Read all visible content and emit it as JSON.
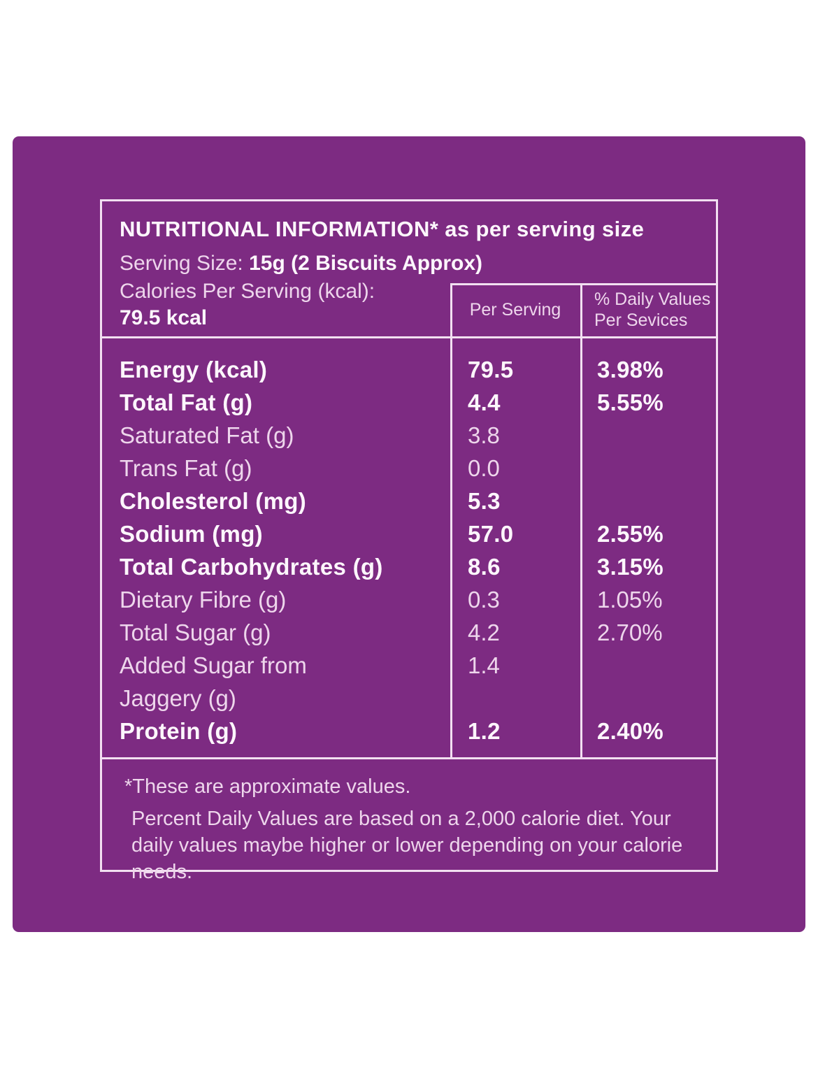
{
  "colors": {
    "page_background": "#ffffff",
    "panel_purple": "#7d2b82",
    "divider_line": "#f2e0f1",
    "text_regular": "#eed6ec",
    "text_bold": "#fdf6fc"
  },
  "header": {
    "title": "NUTRITIONAL INFORMATION* as per serving size",
    "serving_size_label": "Serving Size: ",
    "serving_size_value": "15g (2 Biscuits Approx)",
    "calories_label": "Calories Per Serving (kcal):",
    "calories_value": "79.5 kcal"
  },
  "columns": {
    "per_serving": "Per Serving",
    "daily_values_line1": "% Daily Values",
    "daily_values_line2": "Per Sevices"
  },
  "rows": [
    {
      "label": "Energy (kcal)",
      "per_serving": "79.5",
      "daily_pct": "3.98%",
      "bold": true
    },
    {
      "label": "Total Fat (g)",
      "per_serving": "4.4",
      "daily_pct": "5.55%",
      "bold": true
    },
    {
      "label": "Saturated Fat (g)",
      "per_serving": "3.8",
      "daily_pct": "",
      "bold": false
    },
    {
      "label": "Trans Fat (g)",
      "per_serving": "0.0",
      "daily_pct": "",
      "bold": false
    },
    {
      "label": "Cholesterol (mg)",
      "per_serving": "5.3",
      "daily_pct": "",
      "bold": true
    },
    {
      "label": "Sodium (mg)",
      "per_serving": "57.0",
      "daily_pct": "2.55%",
      "bold": true
    },
    {
      "label": "Total Carbohydrates (g)",
      "per_serving": "8.6",
      "daily_pct": "3.15%",
      "bold": true
    },
    {
      "label": "Dietary Fibre (g)",
      "per_serving": "0.3",
      "daily_pct": "1.05%",
      "bold": false
    },
    {
      "label": "Total Sugar (g)",
      "per_serving": "4.2",
      "daily_pct": "2.70%",
      "bold": false
    },
    {
      "label": "Added Sugar from\nJaggery (g)",
      "per_serving": "1.4",
      "daily_pct": "",
      "bold": false
    },
    {
      "label": "Protein (g)",
      "per_serving": "1.2",
      "daily_pct": "2.40%",
      "bold": true
    }
  ],
  "footer": {
    "note1": "*These are approximate values.",
    "note2": "Percent Daily Values are based on a 2,000 calorie diet. Your daily values maybe higher or lower depending on your calorie needs."
  }
}
